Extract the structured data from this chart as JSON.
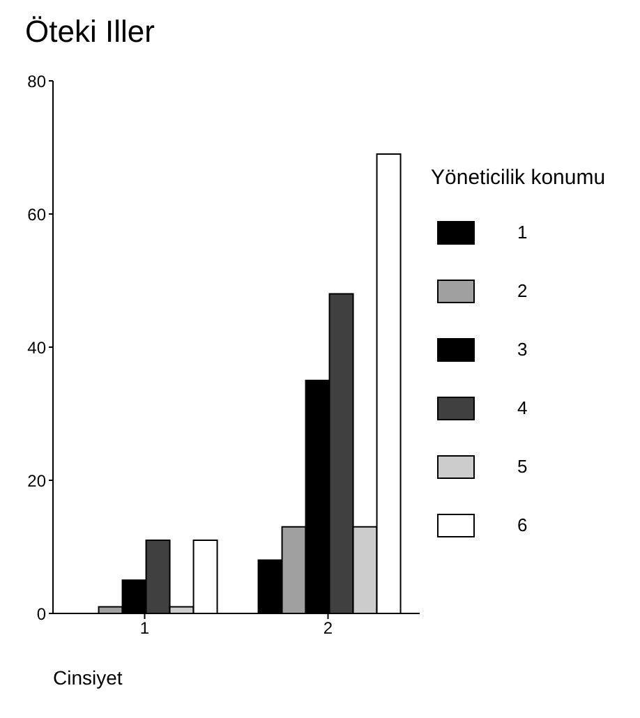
{
  "chart_data": {
    "type": "bar",
    "title": "Öteki Iller",
    "xlabel": "Cinsiyet",
    "legend_title": "Yöneticilik konumu",
    "categories": [
      "1",
      "2"
    ],
    "series": [
      {
        "name": "1",
        "color": "#000000",
        "values": [
          0,
          8
        ]
      },
      {
        "name": "2",
        "color": "#a0a0a0",
        "values": [
          1,
          13
        ]
      },
      {
        "name": "3",
        "color": "#000000",
        "values": [
          5,
          35
        ]
      },
      {
        "name": "4",
        "color": "#404040",
        "values": [
          11,
          48
        ]
      },
      {
        "name": "5",
        "color": "#cccccc",
        "values": [
          1,
          13
        ]
      },
      {
        "name": "6",
        "color": "#ffffff",
        "values": [
          11,
          69
        ]
      }
    ],
    "ylim": [
      0,
      80
    ],
    "yticks": [
      0,
      20,
      40,
      60,
      80
    ],
    "grid": false,
    "legend": "right"
  }
}
